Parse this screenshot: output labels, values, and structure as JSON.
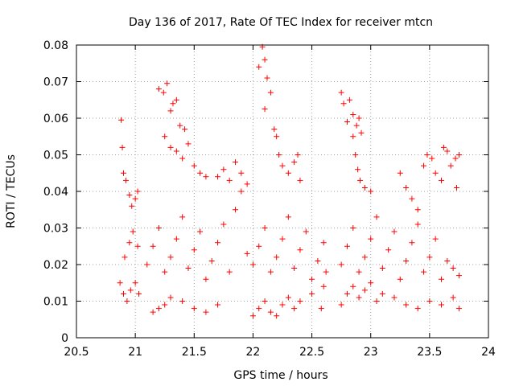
{
  "chart_data": {
    "type": "scatter",
    "title": "Day 136 of 2017, Rate Of TEC Index for receiver mtcn",
    "xlabel": "GPS time / hours",
    "ylabel": "ROTI / TECUs",
    "xlim": [
      20.5,
      24
    ],
    "ylim": [
      0,
      0.08
    ],
    "x_ticks": [
      20.5,
      21,
      21.5,
      22,
      22.5,
      23,
      23.5,
      24
    ],
    "x_tick_labels": [
      "20.5",
      "21",
      "21.5",
      "22",
      "22.5",
      "23",
      "23.5",
      "24"
    ],
    "y_ticks": [
      0,
      0.01,
      0.02,
      0.03,
      0.04,
      0.05,
      0.06,
      0.07,
      0.08
    ],
    "y_tick_labels": [
      "0",
      "0.01",
      "0.02",
      "0.03",
      "0.04",
      "0.05",
      "0.06",
      "0.07",
      "0.08"
    ],
    "grid": true,
    "marker": "+",
    "color": "#ff0000",
    "series": [
      {
        "points": [
          [
            20.88,
            0.0595
          ],
          [
            20.89,
            0.052
          ],
          [
            20.9,
            0.045
          ],
          [
            20.92,
            0.043
          ],
          [
            20.95,
            0.039
          ],
          [
            20.97,
            0.036
          ],
          [
            21.0,
            0.038
          ],
          [
            21.02,
            0.04
          ],
          [
            20.87,
            0.015
          ],
          [
            20.9,
            0.012
          ],
          [
            20.93,
            0.01
          ],
          [
            20.96,
            0.013
          ],
          [
            21.0,
            0.015
          ],
          [
            21.03,
            0.012
          ],
          [
            20.91,
            0.022
          ],
          [
            20.95,
            0.026
          ],
          [
            20.98,
            0.029
          ],
          [
            21.02,
            0.025
          ],
          [
            21.2,
            0.068
          ],
          [
            21.24,
            0.067
          ],
          [
            21.27,
            0.0695
          ],
          [
            21.3,
            0.062
          ],
          [
            21.32,
            0.064
          ],
          [
            21.35,
            0.065
          ],
          [
            21.38,
            0.058
          ],
          [
            21.42,
            0.057
          ],
          [
            21.25,
            0.055
          ],
          [
            21.3,
            0.052
          ],
          [
            21.35,
            0.051
          ],
          [
            21.4,
            0.049
          ],
          [
            21.45,
            0.053
          ],
          [
            21.5,
            0.047
          ],
          [
            21.55,
            0.045
          ],
          [
            21.6,
            0.044
          ],
          [
            21.15,
            0.007
          ],
          [
            21.2,
            0.008
          ],
          [
            21.25,
            0.009
          ],
          [
            21.3,
            0.011
          ],
          [
            21.4,
            0.01
          ],
          [
            21.5,
            0.008
          ],
          [
            21.6,
            0.007
          ],
          [
            21.7,
            0.009
          ],
          [
            21.1,
            0.02
          ],
          [
            21.15,
            0.025
          ],
          [
            21.2,
            0.03
          ],
          [
            21.25,
            0.018
          ],
          [
            21.3,
            0.022
          ],
          [
            21.35,
            0.027
          ],
          [
            21.4,
            0.033
          ],
          [
            21.45,
            0.019
          ],
          [
            21.5,
            0.024
          ],
          [
            21.55,
            0.029
          ],
          [
            21.6,
            0.016
          ],
          [
            21.65,
            0.021
          ],
          [
            21.7,
            0.026
          ],
          [
            21.75,
            0.031
          ],
          [
            21.8,
            0.018
          ],
          [
            21.85,
            0.035
          ],
          [
            21.9,
            0.04
          ],
          [
            21.95,
            0.023
          ],
          [
            21.7,
            0.044
          ],
          [
            21.75,
            0.046
          ],
          [
            21.8,
            0.043
          ],
          [
            21.85,
            0.048
          ],
          [
            21.9,
            0.045
          ],
          [
            21.95,
            0.042
          ],
          [
            22.05,
            0.074
          ],
          [
            22.08,
            0.0795
          ],
          [
            22.1,
            0.076
          ],
          [
            22.12,
            0.071
          ],
          [
            22.15,
            0.067
          ],
          [
            22.1,
            0.0625
          ],
          [
            22.18,
            0.057
          ],
          [
            22.2,
            0.055
          ],
          [
            22.22,
            0.05
          ],
          [
            22.25,
            0.047
          ],
          [
            22.3,
            0.045
          ],
          [
            22.35,
            0.048
          ],
          [
            22.38,
            0.05
          ],
          [
            22.4,
            0.043
          ],
          [
            22.0,
            0.006
          ],
          [
            22.05,
            0.008
          ],
          [
            22.1,
            0.01
          ],
          [
            22.15,
            0.007
          ],
          [
            22.2,
            0.006
          ],
          [
            22.25,
            0.009
          ],
          [
            22.3,
            0.011
          ],
          [
            22.35,
            0.008
          ],
          [
            22.4,
            0.01
          ],
          [
            22.5,
            0.012
          ],
          [
            22.0,
            0.02
          ],
          [
            22.05,
            0.025
          ],
          [
            22.1,
            0.03
          ],
          [
            22.15,
            0.018
          ],
          [
            22.2,
            0.022
          ],
          [
            22.25,
            0.027
          ],
          [
            22.3,
            0.033
          ],
          [
            22.35,
            0.019
          ],
          [
            22.4,
            0.024
          ],
          [
            22.45,
            0.029
          ],
          [
            22.5,
            0.016
          ],
          [
            22.55,
            0.021
          ],
          [
            22.6,
            0.026
          ],
          [
            22.62,
            0.018
          ],
          [
            22.58,
            0.008
          ],
          [
            22.6,
            0.014
          ],
          [
            22.75,
            0.067
          ],
          [
            22.77,
            0.064
          ],
          [
            22.8,
            0.059
          ],
          [
            22.82,
            0.065
          ],
          [
            22.85,
            0.061
          ],
          [
            22.88,
            0.058
          ],
          [
            22.9,
            0.06
          ],
          [
            22.92,
            0.056
          ],
          [
            22.85,
            0.055
          ],
          [
            22.87,
            0.05
          ],
          [
            22.89,
            0.046
          ],
          [
            22.91,
            0.043
          ],
          [
            22.95,
            0.041
          ],
          [
            23.0,
            0.04
          ],
          [
            22.75,
            0.009
          ],
          [
            22.8,
            0.012
          ],
          [
            22.85,
            0.014
          ],
          [
            22.9,
            0.011
          ],
          [
            22.95,
            0.013
          ],
          [
            23.0,
            0.015
          ],
          [
            22.75,
            0.02
          ],
          [
            22.8,
            0.025
          ],
          [
            22.85,
            0.03
          ],
          [
            22.9,
            0.018
          ],
          [
            22.95,
            0.022
          ],
          [
            23.0,
            0.027
          ],
          [
            23.05,
            0.033
          ],
          [
            23.1,
            0.019
          ],
          [
            23.15,
            0.024
          ],
          [
            23.2,
            0.029
          ],
          [
            23.25,
            0.016
          ],
          [
            23.3,
            0.021
          ],
          [
            23.35,
            0.026
          ],
          [
            23.4,
            0.031
          ],
          [
            23.45,
            0.018
          ],
          [
            23.5,
            0.022
          ],
          [
            23.55,
            0.027
          ],
          [
            23.6,
            0.016
          ],
          [
            23.65,
            0.021
          ],
          [
            23.7,
            0.019
          ],
          [
            23.75,
            0.017
          ],
          [
            23.25,
            0.045
          ],
          [
            23.3,
            0.041
          ],
          [
            23.35,
            0.038
          ],
          [
            23.4,
            0.035
          ],
          [
            23.45,
            0.047
          ],
          [
            23.48,
            0.05
          ],
          [
            23.52,
            0.049
          ],
          [
            23.55,
            0.045
          ],
          [
            23.6,
            0.043
          ],
          [
            23.62,
            0.052
          ],
          [
            23.65,
            0.051
          ],
          [
            23.68,
            0.047
          ],
          [
            23.72,
            0.049
          ],
          [
            23.75,
            0.05
          ],
          [
            23.73,
            0.041
          ],
          [
            23.05,
            0.01
          ],
          [
            23.1,
            0.012
          ],
          [
            23.2,
            0.011
          ],
          [
            23.3,
            0.009
          ],
          [
            23.4,
            0.008
          ],
          [
            23.5,
            0.01
          ],
          [
            23.6,
            0.009
          ],
          [
            23.7,
            0.011
          ],
          [
            23.75,
            0.008
          ]
        ]
      }
    ]
  }
}
